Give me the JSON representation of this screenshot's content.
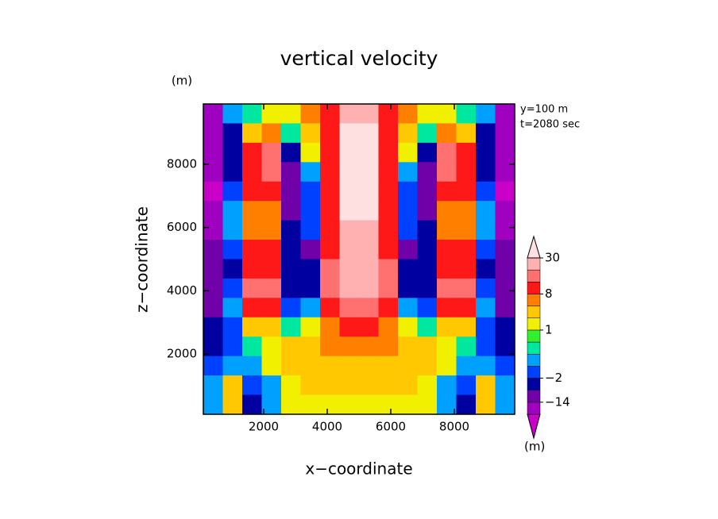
{
  "chart_data": {
    "type": "contour",
    "title": "vertical velocity",
    "x_label": "x−coordinate",
    "y_label": "z−coordinate",
    "y_unit": "(m)",
    "colorbar_unit": "(m)",
    "annotations": [
      "y=100 m",
      "t=2080 sec"
    ],
    "xlim": [
      100,
      9900
    ],
    "ylim": [
      100,
      9900
    ],
    "xticks": [
      2000,
      4000,
      6000,
      8000
    ],
    "yticks": [
      2000,
      4000,
      6000,
      8000
    ],
    "levels": [
      -20,
      -14,
      -8,
      -2,
      -1,
      0,
      0.5,
      1,
      2,
      4,
      8,
      15,
      22,
      30
    ],
    "colors": [
      "#c800c8",
      "#a000c0",
      "#7000a8",
      "#0000a0",
      "#0040ff",
      "#00a0ff",
      "#00e8a0",
      "#30f030",
      "#f0f000",
      "#ffc800",
      "#ff8000",
      "#ff1818",
      "#ff7070",
      "#ffb0b0",
      "#ffe0e0"
    ],
    "colorbar_ticks": [
      30,
      8,
      1,
      {
        "value": -2,
        "label": "−2"
      },
      {
        "value": -14,
        "label": "−14"
      }
    ],
    "z": [
      [
        -16,
        -1,
        0.3,
        1.5,
        1.5,
        5,
        12,
        25,
        25,
        12,
        5,
        1.5,
        1.5,
        0.3,
        -1,
        -16
      ],
      [
        -18,
        -8,
        3,
        6,
        0.3,
        3,
        12,
        32,
        32,
        12,
        3,
        0.3,
        6,
        3,
        -8,
        -18
      ],
      [
        -18,
        -4,
        9,
        18,
        -5,
        1.5,
        10,
        35,
        35,
        10,
        1.5,
        -5,
        18,
        9,
        -4,
        -18
      ],
      [
        -20,
        -3,
        10,
        20,
        -10,
        -1,
        10,
        35,
        35,
        10,
        -1,
        -10,
        20,
        10,
        -3,
        -20
      ],
      [
        -22,
        -2,
        9,
        12,
        -12,
        -2,
        10,
        33,
        33,
        10,
        -2,
        -12,
        12,
        9,
        -2,
        -22
      ],
      [
        -18,
        -1,
        6,
        6,
        -10,
        -2,
        10,
        31,
        31,
        10,
        -2,
        -10,
        6,
        6,
        -1,
        -18
      ],
      [
        -16,
        -0.5,
        4,
        4,
        -8,
        -2,
        12,
        28,
        28,
        12,
        -2,
        -8,
        4,
        4,
        -0.5,
        -16
      ],
      [
        -14,
        -2,
        8,
        8,
        -6,
        -10,
        14,
        26,
        26,
        14,
        -10,
        -6,
        8,
        8,
        -2,
        -14
      ],
      [
        -12,
        -3,
        12,
        12,
        -6,
        -8,
        15,
        24,
        24,
        15,
        -8,
        -6,
        12,
        12,
        -3,
        -12
      ],
      [
        -12,
        -2,
        18,
        16,
        -4,
        -3,
        15,
        22,
        22,
        15,
        -3,
        -4,
        16,
        18,
        -2,
        -12
      ],
      [
        -10,
        -1,
        12,
        10,
        -2,
        -1,
        10,
        16,
        16,
        10,
        -1,
        -2,
        10,
        12,
        -1,
        -10
      ],
      [
        -8,
        -2,
        3,
        3,
        0.3,
        1.5,
        6,
        10,
        10,
        6,
        1.5,
        0.3,
        3,
        3,
        -2,
        -8
      ],
      [
        -3,
        -2,
        0.3,
        1.5,
        2,
        3,
        4,
        5,
        5,
        4,
        3,
        2,
        1.5,
        0.3,
        -2,
        -3
      ],
      [
        -2,
        -1,
        -1,
        1.5,
        2,
        3,
        3.5,
        3.5,
        3.5,
        3.5,
        3,
        2,
        1.5,
        -1,
        -1,
        -2
      ],
      [
        -1,
        3,
        -2,
        -1,
        1.5,
        2.5,
        3,
        3,
        3,
        3,
        2.5,
        1.5,
        -1,
        -2,
        3,
        -1
      ],
      [
        -1,
        3,
        -4,
        -1,
        1.5,
        1.5,
        1.5,
        1.5,
        1.5,
        1.5,
        1.5,
        1.5,
        -1,
        -4,
        3,
        -1
      ]
    ]
  }
}
